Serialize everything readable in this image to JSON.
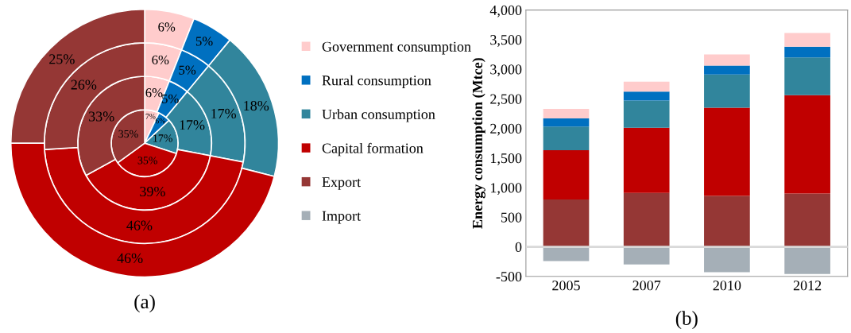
{
  "chart_data": [
    {
      "type": "donut",
      "categories": [
        null,
        null,
        null,
        null,
        null
      ],
      "colors": [
        "#ffcccc",
        "#0070c0",
        "#31859c",
        "#c00000",
        "#953735"
      ],
      "annotations": [
        "(a)"
      ],
      "series": [
        {
          "values": [
            7,
            6,
            17,
            35,
            35
          ],
          "value_labels": [
            "7%",
            "6%",
            "17%",
            "35%",
            "35%"
          ]
        },
        {
          "values": [
            6,
            5,
            17,
            39,
            33
          ],
          "value_labels": [
            "6%",
            "5%",
            "17%",
            "39%",
            "33%"
          ]
        },
        {
          "values": [
            6,
            5,
            17,
            46,
            26
          ],
          "value_labels": [
            "6%",
            "5%",
            "17%",
            "46%",
            "26%"
          ]
        },
        {
          "values": [
            6,
            5,
            18,
            46,
            25
          ],
          "value_labels": [
            "6%",
            "5%",
            "18%",
            "46%",
            "25%"
          ]
        }
      ]
    },
    {
      "type": "bar",
      "stacked": true,
      "categories": [
        "2005",
        "2007",
        "2010",
        "2012"
      ],
      "ylabel": "Energy consumption (Mtce)",
      "ylim": [
        -500,
        4000
      ],
      "yticks": [
        {
          "value": -500,
          "label": "-500"
        },
        0,
        500,
        {
          "value": 1000,
          "label": "1,000"
        },
        {
          "value": 1500,
          "label": "1,500"
        },
        {
          "value": 2000,
          "label": "2,000"
        },
        {
          "value": 2500,
          "label": "2,500"
        },
        {
          "value": 3000,
          "label": "3,000"
        },
        {
          "value": 3500,
          "label": "3,500"
        },
        {
          "value": 4000,
          "label": "4,000"
        }
      ],
      "legend": "left",
      "grid": false,
      "ref_lines": [
        {
          "axis": "y",
          "value": 0,
          "color": "#d9d9d9"
        }
      ],
      "annotations": [
        "(b)"
      ],
      "series": [
        {
          "name": "Import",
          "color": "#a5afb7",
          "values": [
            -240,
            -300,
            -430,
            -460
          ]
        },
        {
          "name": "Export",
          "color": "#953735",
          "values": [
            800,
            910,
            860,
            900
          ]
        },
        {
          "name": "Capital formation",
          "color": "#c00000",
          "values": [
            830,
            1100,
            1490,
            1660
          ]
        },
        {
          "name": "Urban consumption",
          "color": "#31859c",
          "values": [
            400,
            460,
            560,
            640
          ]
        },
        {
          "name": "Rural consumption",
          "color": "#0070c0",
          "values": [
            140,
            150,
            150,
            180
          ]
        },
        {
          "name": "Government consumption",
          "color": "#ffcccc",
          "values": [
            160,
            170,
            190,
            230
          ]
        }
      ]
    }
  ]
}
